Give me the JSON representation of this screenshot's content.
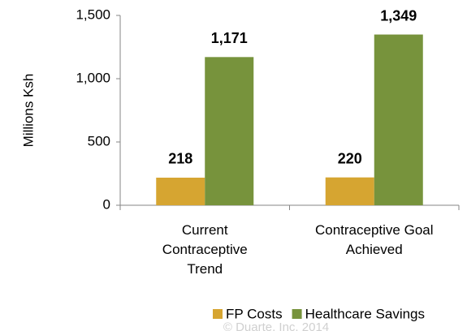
{
  "chart_data": {
    "type": "bar",
    "y_axis_label": "Millions Ksh",
    "categories": [
      "Current Contraceptive Trend",
      "Contraceptive Goal Achieved"
    ],
    "series": [
      {
        "name": "FP Costs",
        "color": "#d6a531",
        "values": [
          218,
          220
        ]
      },
      {
        "name": "Healthcare Savings",
        "color": "#77933c",
        "values": [
          1171,
          1349
        ],
        "value_labels": [
          "1,171",
          "1,349"
        ]
      }
    ],
    "ylim": [
      0,
      1500
    ],
    "yticks": [
      0,
      500,
      {
        "value": 1000,
        "label": "1,000"
      },
      {
        "value": 1500,
        "label": "1,500"
      }
    ],
    "grid": false,
    "legend": "bottom",
    "watermark": "© Duarte, Inc. 2014"
  }
}
